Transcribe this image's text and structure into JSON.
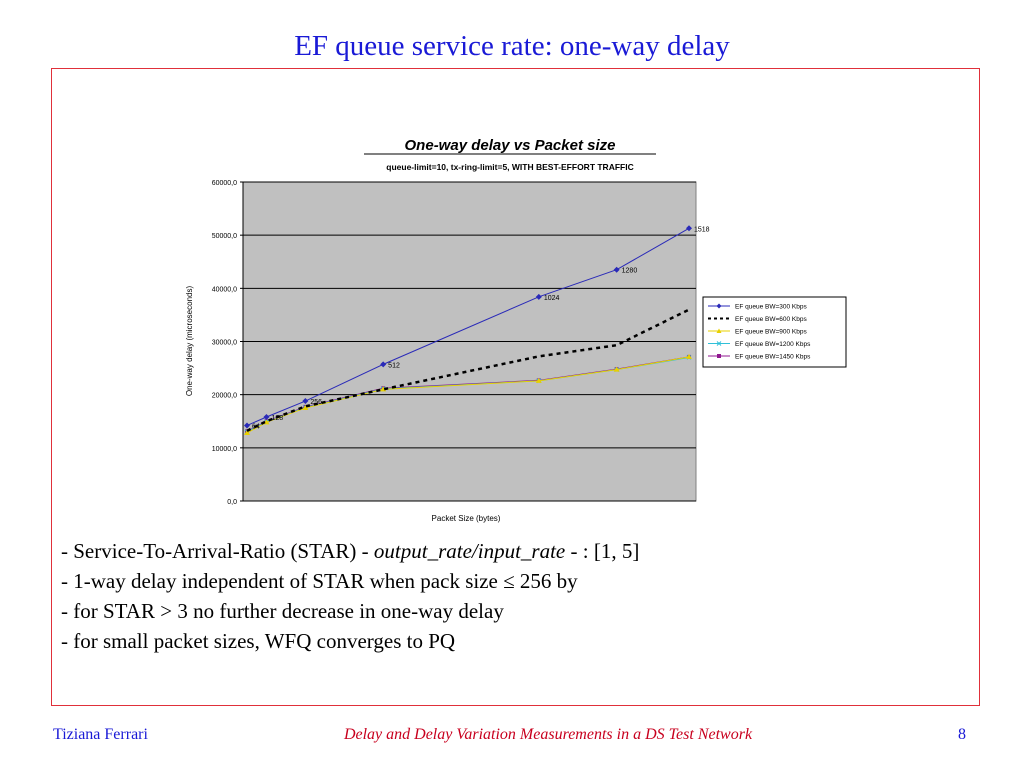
{
  "slide": {
    "title": "EF queue service rate: one-way delay",
    "bullets": [
      {
        "parts": [
          "- Service-To-Arrival-Ratio (STAR) - ",
          "output_rate/input_rate",
          " - :  [1, 5]"
        ]
      },
      {
        "parts": [
          "- 1-way delay independent of STAR when pack size ≤ 256 by"
        ]
      },
      {
        "parts": [
          "- for STAR > 3 no further decrease in one-way delay"
        ]
      },
      {
        "parts": [
          "- for small packet sizes, WFQ converges to PQ"
        ]
      }
    ],
    "footer": {
      "author": "Tiziana Ferrari",
      "title": "Delay and Delay Variation Measurements in a DS Test Network",
      "page": "8"
    }
  },
  "colors": {
    "title": "#1a1ad6",
    "frame": "#e0303a",
    "footer_title": "#c8001e",
    "plot_bg": "#c0c0c0"
  },
  "chart_data": {
    "type": "line",
    "title": "One-way delay vs Packet size",
    "subtitle": "queue-limit=10, tx-ring-limit=5, WITH BEST-EFFORT TRAFFIC",
    "xlabel": "Packet Size (bytes)",
    "ylabel": "One-way delay (microseconds)",
    "x": [
      64,
      128,
      256,
      512,
      1024,
      1280,
      1518
    ],
    "ylim": [
      0,
      60000
    ],
    "yticks": [
      "0,0",
      "10000,0",
      "20000,0",
      "30000,0",
      "40000,0",
      "50000,0",
      "60000,0"
    ],
    "grid": true,
    "legend_position": "right",
    "point_labels": [
      "64",
      "128",
      "256",
      "512",
      "1024",
      "1280",
      "1518"
    ],
    "series": [
      {
        "name": "EF queue BW=300 Kbps",
        "values": [
          14200,
          15800,
          18800,
          25700,
          38400,
          43500,
          51300
        ],
        "color": "#2a2ab8",
        "style": "solid",
        "marker": "diamond"
      },
      {
        "name": "EF queue BW=600 Kbps",
        "values": [
          13200,
          15000,
          17800,
          21000,
          27200,
          29300,
          36000
        ],
        "color": "#000000",
        "style": "dashed",
        "marker": "none"
      },
      {
        "name": "EF queue BW=900 Kbps",
        "values": [
          12800,
          14800,
          17500,
          21000,
          22600,
          24700,
          27100
        ],
        "color": "#e8d000",
        "style": "solid",
        "marker": "triangle"
      },
      {
        "name": "EF queue BW=1200 Kbps",
        "values": [
          13000,
          14900,
          17600,
          21100,
          22600,
          24700,
          27000
        ],
        "color": "#30c0d8",
        "style": "solid",
        "marker": "x"
      },
      {
        "name": "EF queue BW=1450 Kbps",
        "values": [
          13100,
          15000,
          17700,
          21200,
          22700,
          24800,
          27100
        ],
        "color": "#901890",
        "style": "solid",
        "marker": "square"
      }
    ]
  }
}
